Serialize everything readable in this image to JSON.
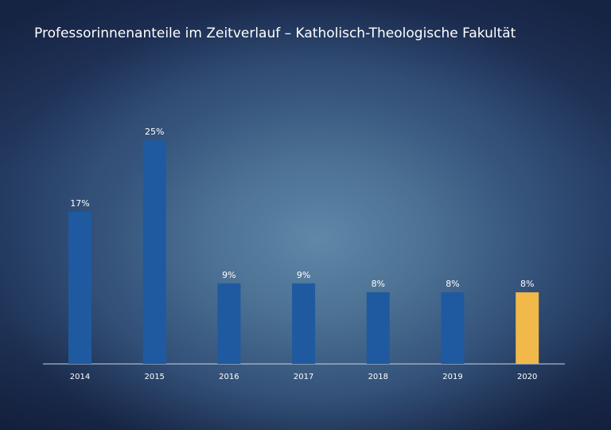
{
  "chart_data": {
    "type": "bar",
    "title": "Professorinnenanteile im Zeitverlauf – Katholisch-Theologische Fakultät",
    "xlabel": "",
    "ylabel": "",
    "categories": [
      "2014",
      "2015",
      "2016",
      "2017",
      "2018",
      "2019",
      "2020"
    ],
    "values": [
      17,
      25,
      9,
      9,
      8,
      8,
      8
    ],
    "value_labels": [
      "17%",
      "25%",
      "9%",
      "9%",
      "8%",
      "8%",
      "8%"
    ],
    "ylim": [
      0,
      30
    ],
    "grid": false,
    "legend": "none",
    "colors": {
      "bar": "#1f5aa0",
      "highlight": "#f0b94a",
      "axis": "#c9d4e2"
    },
    "highlight_index": 6
  }
}
